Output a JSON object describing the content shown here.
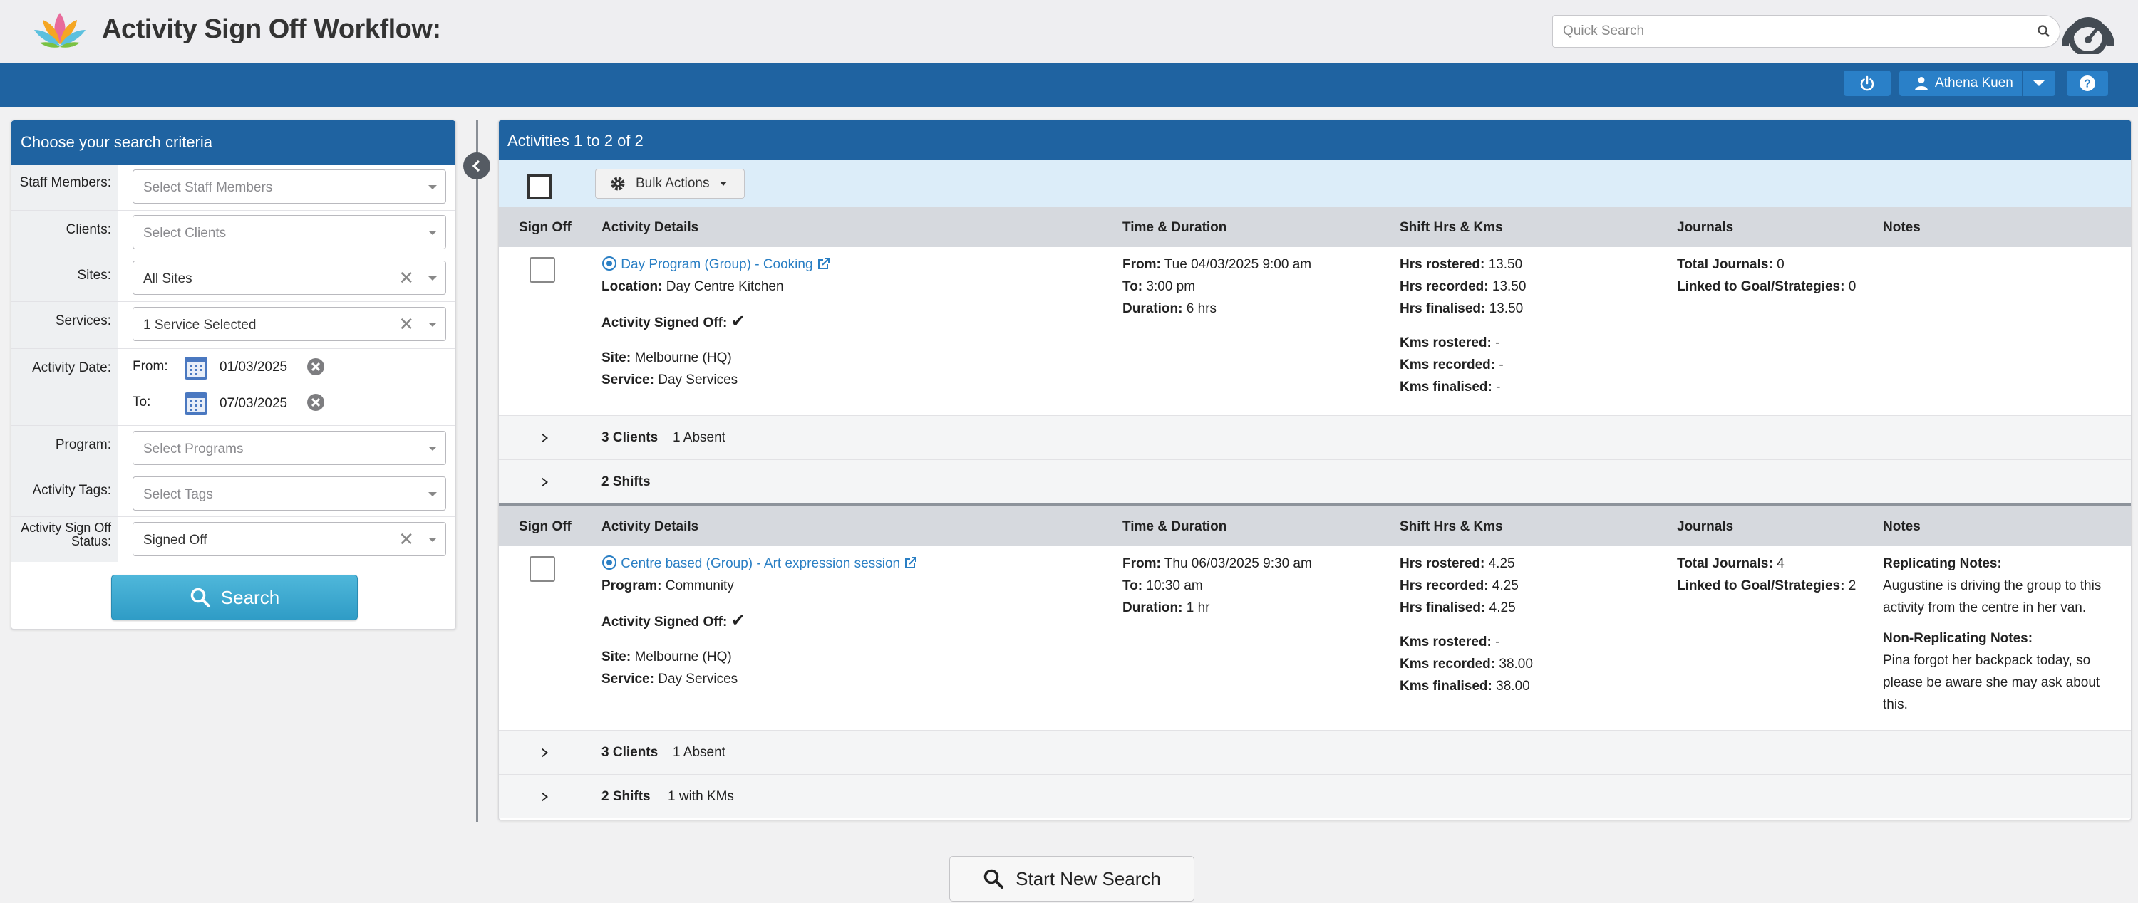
{
  "app": {
    "title": "Activity Sign Off Workflow:"
  },
  "search": {
    "placeholder": "Quick Search"
  },
  "user": {
    "name": "Athena Kuen"
  },
  "criteria": {
    "title": "Choose your search criteria",
    "staff": {
      "label": "Staff Members:",
      "placeholder": "Select Staff Members"
    },
    "clients": {
      "label": "Clients:",
      "placeholder": "Select Clients"
    },
    "sites": {
      "label": "Sites:",
      "value": "All Sites"
    },
    "services": {
      "label": "Services:",
      "value": "1 Service Selected"
    },
    "date": {
      "label": "Activity Date:",
      "from_label": "From:",
      "from": "01/03/2025",
      "to_label": "To:",
      "to": "07/03/2025"
    },
    "program": {
      "label": "Program:",
      "placeholder": "Select Programs"
    },
    "tags": {
      "label": "Activity Tags:",
      "placeholder": "Select Tags"
    },
    "status": {
      "label_line1": "Activity Sign Off",
      "label_line2": "Status:",
      "value": "Signed Off"
    },
    "search_label": "Search"
  },
  "results": {
    "title": "Activities 1 to 2 of 2",
    "bulk_label": "Bulk Actions",
    "columns": {
      "signoff": "Sign Off",
      "details": "Activity Details",
      "time": "Time & Duration",
      "shift": "Shift Hrs & Kms",
      "journals": "Journals",
      "notes": "Notes"
    },
    "activities": [
      {
        "name": "Day Program (Group) - Cooking",
        "loc_label": "Location:",
        "loc_value": "Day Centre Kitchen",
        "signed_label": "Activity Signed Off:",
        "site_label": "Site:",
        "site_value": "Melbourne (HQ)",
        "service_label": "Service:",
        "service_value": "Day Services",
        "from_label": "From:",
        "from_value": "Tue 04/03/2025 9:00 am",
        "to_label": "To:",
        "to_value": "3:00 pm",
        "dur_label": "Duration:",
        "dur_value": "6 hrs",
        "hrs_rostered_label": "Hrs rostered:",
        "hrs_rostered": "13.50",
        "hrs_recorded_label": "Hrs recorded:",
        "hrs_recorded": "13.50",
        "hrs_finalised_label": "Hrs finalised:",
        "hrs_finalised": "13.50",
        "kms_rostered_label": "Kms rostered:",
        "kms_rostered": "-",
        "kms_recorded_label": "Kms recorded:",
        "kms_recorded": "-",
        "kms_finalised_label": "Kms finalised:",
        "kms_finalised": "-",
        "journals_label": "Total Journals:",
        "journals": "0",
        "linked_label": "Linked to Goal/Strategies:",
        "linked": "0",
        "clients_label": "3 Clients",
        "clients_extra": "1 Absent",
        "shifts_label": "2 Shifts",
        "shifts_extra": ""
      },
      {
        "name": "Centre based (Group) - Art expression session",
        "loc_label": "Program:",
        "loc_value": "Community",
        "signed_label": "Activity Signed Off:",
        "site_label": "Site:",
        "site_value": "Melbourne (HQ)",
        "service_label": "Service:",
        "service_value": "Day Services",
        "from_label": "From:",
        "from_value": "Thu 06/03/2025 9:30 am",
        "to_label": "To:",
        "to_value": "10:30 am",
        "dur_label": "Duration:",
        "dur_value": "1 hr",
        "hrs_rostered_label": "Hrs rostered:",
        "hrs_rostered": "4.25",
        "hrs_recorded_label": "Hrs recorded:",
        "hrs_recorded": "4.25",
        "hrs_finalised_label": "Hrs finalised:",
        "hrs_finalised": "4.25",
        "kms_rostered_label": "Kms rostered:",
        "kms_rostered": "-",
        "kms_recorded_label": "Kms recorded:",
        "kms_recorded": "38.00",
        "kms_finalised_label": "Kms finalised:",
        "kms_finalised": "38.00",
        "journals_label": "Total Journals:",
        "journals": "4",
        "linked_label": "Linked to Goal/Strategies:",
        "linked": "2",
        "rep_notes_label": "Replicating Notes:",
        "rep_notes_line1": "Augustine is driving the group to this",
        "rep_notes_line2": "activity from the centre in her van.",
        "nonrep_notes_label": "Non-Replicating Notes:",
        "nonrep_notes_line1": "Pina forgot her backpack today, so",
        "nonrep_notes_line2": "please be aware she may ask about",
        "nonrep_notes_line3": "this.",
        "clients_label": "3 Clients",
        "clients_extra": "1 Absent",
        "shifts_label": "2 Shifts",
        "shifts_extra": "1 with KMs"
      }
    ]
  },
  "new_search_label": "Start New Search",
  "colors": {
    "brand_blue": "#1f63a1",
    "button_blue": "#2a80c8",
    "link": "#2a7fc4",
    "search_btn": "#3aa7d0"
  }
}
